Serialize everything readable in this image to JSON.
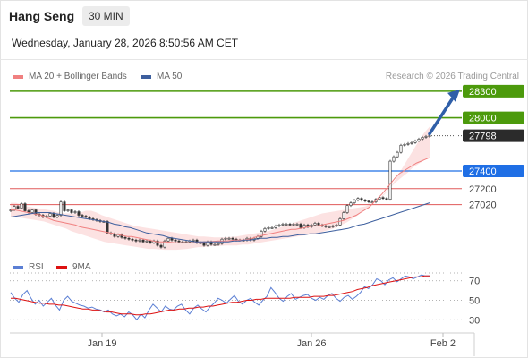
{
  "header": {
    "title": "Hang Seng",
    "timeframe": "30 MIN",
    "datetime": "Wednesday, January 28, 2026 8:50:56 AM CET",
    "credit": "Research © 2026 Trading Central"
  },
  "colors": {
    "green": "#4c9a0c",
    "blue": "#1f6fe5",
    "red": "#e05a5a",
    "dark": "#2b2b2b",
    "ma20": "#f08080",
    "ma50": "#3d5f9e",
    "band": "#fbd6d6",
    "rsi": "#5b7fd4",
    "rsi_ma": "#dd1111",
    "arrow": "#2f5fa8"
  },
  "chart_data": [
    {
      "type": "line",
      "title": "",
      "instrument": "Hang Seng",
      "interval": "30 MIN",
      "legend": [
        {
          "name": "MA 20 + Bollinger Bands",
          "color": "#f08080"
        },
        {
          "name": "MA 50",
          "color": "#3d5f9e"
        }
      ],
      "legend_placement": "top-left",
      "x_ticks": [
        "Jan 19",
        "Jan 26",
        "Feb 2"
      ],
      "ylim": [
        26400,
        28420
      ],
      "levels": [
        {
          "label": "28300",
          "value": 28300,
          "role": "resistance",
          "color": "#4c9a0c"
        },
        {
          "label": "28000",
          "value": 28000,
          "role": "resistance",
          "color": "#4c9a0c"
        },
        {
          "label": "27798",
          "value": 27798,
          "role": "last price",
          "color": "#2b2b2b"
        },
        {
          "label": "27400",
          "value": 27400,
          "role": "pivot",
          "color": "#1f6fe5"
        },
        {
          "label": "27200",
          "value": 27200,
          "role": "support",
          "color": "#e05a5a"
        },
        {
          "label": "27020",
          "value": 27020,
          "role": "support",
          "color": "#e05a5a"
        }
      ],
      "close": [
        26960,
        27000,
        26980,
        27030,
        26950,
        26930,
        26960,
        26910,
        26900,
        26880,
        26890,
        26920,
        26880,
        26900,
        27050,
        26950,
        26960,
        26930,
        26940,
        26900,
        26890,
        26880,
        26860,
        26850,
        26840,
        26830,
        26830,
        26700,
        26690,
        26660,
        26680,
        26650,
        26640,
        26630,
        26620,
        26610,
        26620,
        26600,
        26610,
        26590,
        26610,
        26560,
        26540,
        26610,
        26640,
        26620,
        26610,
        26600,
        26600,
        26600,
        26610,
        26620,
        26590,
        26590,
        26560,
        26600,
        26570,
        26570,
        26580,
        26630,
        26640,
        26640,
        26630,
        26620,
        26620,
        26620,
        26640,
        26620,
        26640,
        26660,
        26720,
        26750,
        26760,
        26760,
        26780,
        26790,
        26800,
        26800,
        26790,
        26800,
        26800,
        26760,
        26790,
        26770,
        26790,
        26810,
        26790,
        26780,
        26770,
        26770,
        26780,
        26790,
        26860,
        26930,
        27010,
        27040,
        27070,
        27090,
        27070,
        27060,
        27050,
        27050,
        27080,
        27100,
        27090,
        27080,
        27510,
        27560,
        27610,
        27690,
        27700,
        27710,
        27720,
        27740,
        27760,
        27780,
        27790,
        27798
      ],
      "ma20": [
        26960,
        26960,
        26950,
        26940,
        26930,
        26920,
        26910,
        26900,
        26880,
        26860,
        26840,
        26830,
        26820,
        26810,
        26800,
        26790,
        26770,
        26760,
        26750,
        26740,
        26730,
        26720,
        26710,
        26700,
        26690,
        26680,
        26670,
        26660,
        26660,
        26650,
        26640,
        26630,
        26620,
        26610,
        26600,
        26600,
        26600,
        26595,
        26590,
        26590,
        26590,
        26590,
        26590,
        26590,
        26595,
        26600,
        26600,
        26605,
        26610,
        26610,
        26610,
        26615,
        26620,
        26620,
        26620,
        26630,
        26640,
        26660,
        26670,
        26680,
        26690,
        26700,
        26710,
        26720,
        26730,
        26740,
        26740,
        26750,
        26760,
        26770,
        26780,
        26780,
        26790,
        26800,
        26810,
        26820,
        26830,
        26840,
        26860,
        26880,
        26900,
        26930,
        26960,
        26990,
        27040,
        27090,
        27140,
        27200,
        27260,
        27320,
        27370,
        27400,
        27430,
        27460,
        27490,
        27510,
        27530,
        27550
      ],
      "ma50": [
        26880,
        26890,
        26900,
        26910,
        26920,
        26930,
        26930,
        26930,
        26920,
        26910,
        26900,
        26890,
        26880,
        26870,
        26860,
        26850,
        26840,
        26830,
        26820,
        26800,
        26790,
        26770,
        26760,
        26740,
        26720,
        26700,
        26690,
        26680,
        26670,
        26650,
        26640,
        26630,
        26620,
        26610,
        26600,
        26600,
        26600,
        26600,
        26600,
        26600,
        26600,
        26610,
        26610,
        26620,
        26620,
        26630,
        26640,
        26640,
        26650,
        26650,
        26660,
        26660,
        26670,
        26680,
        26680,
        26690,
        26690,
        26700,
        26710,
        26720,
        26730,
        26740,
        26750,
        26770,
        26790,
        26800,
        26820,
        26840,
        26860,
        26880,
        26900,
        26920,
        26940,
        26960,
        26980,
        27000,
        27020,
        27040
      ],
      "bollinger_upper": [
        27040,
        27040,
        27020,
        27000,
        26990,
        26980,
        26970,
        26960,
        26950,
        26930,
        26920,
        26920,
        26920,
        26930,
        26950,
        26950,
        26930,
        26900,
        26880,
        26860,
        26840,
        26820,
        26800,
        26780,
        26770,
        26760,
        26750,
        26740,
        26730,
        26720,
        26710,
        26700,
        26690,
        26680,
        26670,
        26660,
        26660,
        26655,
        26650,
        26650,
        26650,
        26655,
        26660,
        26670,
        26680,
        26690,
        26700,
        26710,
        26720,
        26740,
        26760,
        26780,
        26800,
        26820,
        26840,
        26860,
        26880,
        26900,
        26920,
        26930,
        26940,
        26950,
        26960,
        26970,
        26980,
        26990,
        27000,
        27020,
        27060,
        27100,
        27160,
        27240,
        27340,
        27440,
        27540,
        27640,
        27740,
        27830,
        27900
      ],
      "bollinger_lower": [
        26880,
        26880,
        26870,
        26860,
        26850,
        26840,
        26830,
        26810,
        26790,
        26770,
        26750,
        26720,
        26700,
        26680,
        26660,
        26640,
        26620,
        26600,
        26590,
        26580,
        26570,
        26560,
        26550,
        26540,
        26530,
        26520,
        26520,
        26515,
        26510,
        26510,
        26510,
        26515,
        26520,
        26530,
        26540,
        26540,
        26550,
        26550,
        26555,
        26560,
        26560,
        26560,
        26570,
        26570,
        26580,
        26590,
        26600,
        26610,
        26620,
        26630,
        26640,
        26650,
        26660,
        26670,
        26680,
        26690,
        26700,
        26720,
        26740,
        26760,
        26790,
        26820,
        26860,
        26900,
        26950,
        27000,
        27050,
        27100,
        27160,
        27220,
        27280,
        27330,
        27380,
        27440,
        27480,
        27520,
        27560
      ]
    },
    {
      "type": "line",
      "title": "",
      "legend": [
        {
          "name": "RSI",
          "color": "#5b7fd4"
        },
        {
          "name": "9MA",
          "color": "#dd1111"
        }
      ],
      "y_ticks": [
        70,
        50,
        30
      ],
      "ylim": [
        22,
        78
      ],
      "rsi": [
        58,
        52,
        48,
        56,
        60,
        52,
        46,
        50,
        44,
        48,
        52,
        45,
        40,
        50,
        54,
        49,
        47,
        45,
        44,
        42,
        43,
        41,
        40,
        38,
        40,
        36,
        34,
        36,
        33,
        38,
        35,
        30,
        36,
        32,
        40,
        46,
        42,
        38,
        44,
        41,
        40,
        44,
        46,
        40,
        36,
        42,
        45,
        41,
        38,
        43,
        47,
        52,
        50,
        47,
        51,
        55,
        49,
        46,
        50,
        52,
        48,
        45,
        50,
        54,
        63,
        58,
        52,
        49,
        54,
        57,
        51,
        53,
        55,
        56,
        52,
        50,
        53,
        51,
        55,
        57,
        52,
        49,
        53,
        55,
        51,
        54,
        58,
        64,
        62,
        66,
        72,
        70,
        66,
        71,
        73,
        69,
        72,
        75,
        74,
        72,
        74,
        76,
        75,
        75
      ],
      "rsi_ma": [
        52,
        52,
        51,
        50,
        49,
        48,
        47,
        47,
        46,
        46,
        45,
        45,
        44,
        43,
        42,
        41,
        41,
        40,
        40,
        39,
        38,
        38,
        37,
        36,
        36,
        36,
        35,
        35,
        36,
        36,
        37,
        38,
        39,
        40,
        40,
        41,
        41,
        42,
        42,
        43,
        43,
        44,
        44,
        45,
        46,
        47,
        48,
        48,
        49,
        50,
        50,
        51,
        51,
        52,
        52,
        52,
        52,
        52,
        52,
        53,
        53,
        53,
        53,
        54,
        54,
        54,
        55,
        55,
        56,
        57,
        58,
        59,
        61,
        62,
        63,
        65,
        66,
        67,
        68,
        69,
        70,
        71,
        72,
        73,
        74,
        74,
        75,
        75
      ]
    }
  ]
}
